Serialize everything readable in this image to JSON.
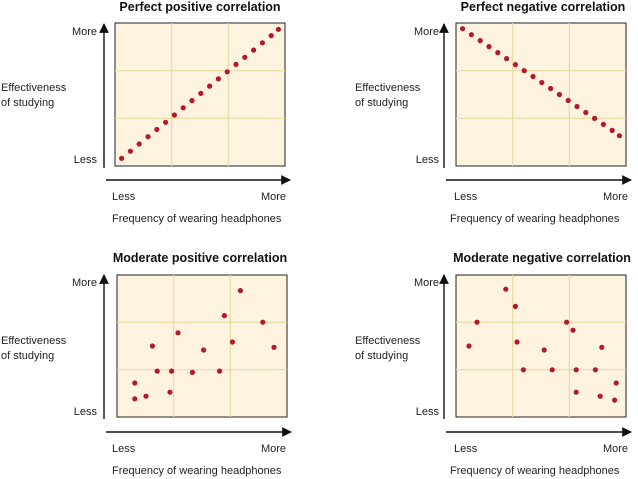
{
  "chart_data": [
    {
      "type": "scatter",
      "title": "Perfect positive correlation",
      "xlabel": "Frequency of wearing headphones",
      "ylabel": [
        "Effectiveness",
        "of studying"
      ],
      "x_ticks": [
        "Less",
        "More"
      ],
      "y_ticks": [
        "More",
        "Less"
      ],
      "xlim": [
        0,
        10
      ],
      "ylim": [
        0,
        10
      ],
      "grid": true,
      "point_color": "#b5172b",
      "x": [
        0.1,
        0.65,
        1.2,
        1.75,
        2.3,
        2.85,
        3.4,
        3.95,
        4.5,
        5.05,
        5.6,
        6.15,
        6.7,
        7.25,
        7.8,
        8.35,
        8.9,
        9.45,
        9.9
      ],
      "y": [
        0.2,
        0.74,
        1.28,
        1.83,
        2.37,
        2.91,
        3.46,
        4.0,
        4.54,
        5.08,
        5.63,
        6.17,
        6.71,
        7.26,
        7.8,
        8.34,
        8.89,
        9.43,
        9.9
      ]
    },
    {
      "type": "scatter",
      "title": "Perfect negative correlation",
      "xlabel": "Frequency of wearing headphones",
      "ylabel": [
        "Effectiveness",
        "of studying"
      ],
      "x_ticks": [
        "Less",
        "More"
      ],
      "y_ticks": [
        "More",
        "Less"
      ],
      "xlim": [
        0,
        10
      ],
      "ylim": [
        0,
        10
      ],
      "grid": true,
      "point_color": "#b5172b",
      "x": [
        0.1,
        0.65,
        1.2,
        1.75,
        2.3,
        2.85,
        3.4,
        3.95,
        4.5,
        5.05,
        5.6,
        6.15,
        6.7,
        7.25,
        7.8,
        8.35,
        8.9,
        9.45,
        9.9
      ],
      "y": [
        9.95,
        9.5,
        9.05,
        8.6,
        8.15,
        7.7,
        7.25,
        6.8,
        6.35,
        5.9,
        5.45,
        5.0,
        4.55,
        4.1,
        3.65,
        3.2,
        2.75,
        2.3,
        1.9
      ]
    },
    {
      "type": "scatter",
      "title": "Moderate positive correlation",
      "xlabel": "Frequency of wearing headphones",
      "ylabel": [
        "Effectiveness",
        "of studying"
      ],
      "x_ticks": [
        "Less",
        "More"
      ],
      "y_ticks": [
        "More",
        "Less"
      ],
      "xlim": [
        0,
        10
      ],
      "ylim": [
        0,
        10
      ],
      "grid": true,
      "point_color": "#b5172b",
      "x": [
        0.8,
        0.8,
        1.5,
        1.9,
        2.2,
        3.0,
        3.1,
        3.5,
        4.4,
        5.1,
        6.1,
        6.4,
        6.9,
        7.4,
        8.8,
        9.5
      ],
      "y": [
        1.0,
        2.2,
        1.2,
        5.0,
        3.1,
        1.5,
        3.1,
        6.0,
        3.0,
        4.7,
        3.1,
        7.3,
        5.3,
        9.2,
        6.8,
        4.9
      ]
    },
    {
      "type": "scatter",
      "title": "Moderate negative correlation",
      "xlabel": "Frequency of wearing headphones",
      "ylabel": [
        "Effectiveness",
        "of studying"
      ],
      "x_ticks": [
        "Less",
        "More"
      ],
      "y_ticks": [
        "More",
        "Less"
      ],
      "xlim": [
        0,
        10
      ],
      "ylim": [
        0,
        10
      ],
      "grid": true,
      "point_color": "#b5172b",
      "x": [
        0.5,
        1.0,
        2.8,
        3.4,
        3.5,
        3.9,
        5.2,
        5.7,
        6.6,
        7.0,
        7.2,
        7.2,
        8.4,
        8.7,
        8.8,
        9.6,
        9.7
      ],
      "y": [
        5.0,
        6.8,
        9.3,
        8.0,
        5.3,
        3.2,
        4.7,
        3.2,
        6.8,
        6.2,
        3.2,
        1.5,
        3.2,
        1.2,
        4.9,
        0.9,
        2.2
      ]
    }
  ]
}
